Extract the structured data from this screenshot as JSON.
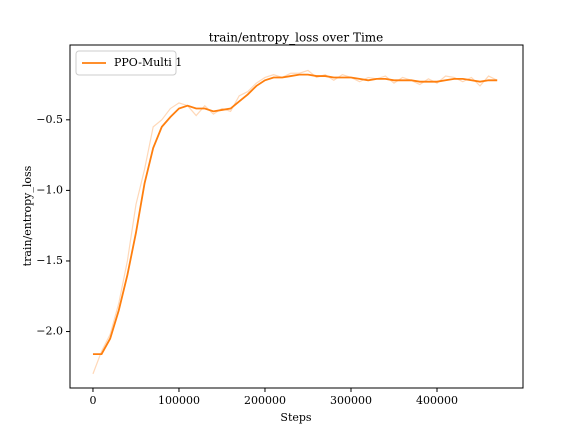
{
  "chart_data": {
    "type": "line",
    "title": "train/entropy_loss over Time",
    "x_label": "Steps",
    "y_label": "train/entropy_loss",
    "x": [
      0,
      10000,
      20000,
      30000,
      40000,
      50000,
      60000,
      70000,
      80000,
      90000,
      100000,
      110000,
      120000,
      130000,
      140000,
      150000,
      160000,
      170000,
      180000,
      190000,
      200000,
      210000,
      220000,
      230000,
      240000,
      250000,
      260000,
      270000,
      280000,
      290000,
      300000,
      310000,
      320000,
      330000,
      340000,
      350000,
      360000,
      370000,
      380000,
      390000,
      400000,
      410000,
      420000,
      430000,
      440000,
      450000,
      460000,
      470000
    ],
    "series": [
      {
        "color": "#ffd8b8",
        "values": [
          -2.3,
          -2.14,
          -2.02,
          -1.8,
          -1.5,
          -1.1,
          -0.85,
          -0.55,
          -0.5,
          -0.42,
          -0.38,
          -0.4,
          -0.47,
          -0.4,
          -0.46,
          -0.42,
          -0.44,
          -0.33,
          -0.3,
          -0.24,
          -0.2,
          -0.18,
          -0.2,
          -0.17,
          -0.17,
          -0.15,
          -0.2,
          -0.18,
          -0.22,
          -0.18,
          -0.2,
          -0.23,
          -0.2,
          -0.21,
          -0.19,
          -0.24,
          -0.2,
          -0.22,
          -0.25,
          -0.21,
          -0.24,
          -0.19,
          -0.2,
          -0.23,
          -0.2,
          -0.26,
          -0.19,
          -0.22
        ]
      },
      {
        "name": "PPO-Multi 1",
        "color": "#ff7f0e",
        "values": [
          -2.16,
          -2.16,
          -2.05,
          -1.85,
          -1.6,
          -1.3,
          -0.95,
          -0.7,
          -0.55,
          -0.48,
          -0.42,
          -0.4,
          -0.42,
          -0.42,
          -0.44,
          -0.43,
          -0.42,
          -0.37,
          -0.32,
          -0.26,
          -0.22,
          -0.2,
          -0.2,
          -0.19,
          -0.18,
          -0.18,
          -0.19,
          -0.19,
          -0.2,
          -0.2,
          -0.2,
          -0.21,
          -0.22,
          -0.21,
          -0.21,
          -0.22,
          -0.22,
          -0.22,
          -0.23,
          -0.23,
          -0.23,
          -0.22,
          -0.21,
          -0.21,
          -0.22,
          -0.23,
          -0.22,
          -0.22
        ]
      }
    ],
    "xlim": [
      -26700,
      500000
    ],
    "ylim": [
      -2.4,
      0.03
    ],
    "xticks": [
      0,
      100000,
      200000,
      300000,
      400000
    ],
    "yticks": [
      {
        "value": -2.0,
        "label": "−2.0"
      },
      {
        "value": -1.5,
        "label": "−1.5"
      },
      {
        "value": -1.0,
        "label": "−1.0"
      },
      {
        "value": -0.5,
        "label": "−0.5"
      }
    ],
    "legend": "upper left"
  }
}
